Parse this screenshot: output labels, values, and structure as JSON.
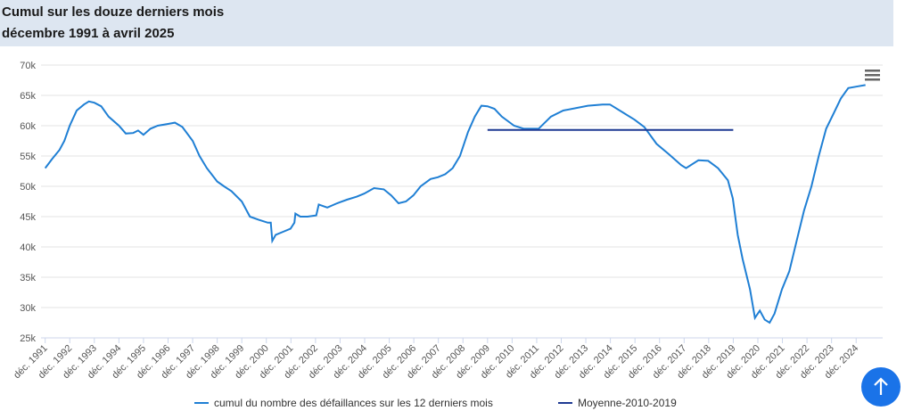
{
  "chart_data": {
    "type": "line",
    "title": "Cumul sur les douze derniers mois",
    "subtitle": "décembre 1991 à avril 2025",
    "xlim": [
      1991.75,
      2026.0
    ],
    "ylim": [
      25,
      70
    ],
    "yticks": [
      {
        "value": 25,
        "label": "25k"
      },
      {
        "value": 30,
        "label": "30k"
      },
      {
        "value": 35,
        "label": "35k"
      },
      {
        "value": 40,
        "label": "40k"
      },
      {
        "value": 45,
        "label": "45k"
      },
      {
        "value": 50,
        "label": "50k"
      },
      {
        "value": 55,
        "label": "55k"
      },
      {
        "value": 60,
        "label": "60k"
      },
      {
        "value": 65,
        "label": "65k"
      },
      {
        "value": 70,
        "label": "70k"
      }
    ],
    "xticks": [
      {
        "value": 1991.92,
        "label": "déc. 1991"
      },
      {
        "value": 1992.92,
        "label": "déc. 1992"
      },
      {
        "value": 1993.92,
        "label": "déc. 1993"
      },
      {
        "value": 1994.92,
        "label": "déc. 1994"
      },
      {
        "value": 1995.92,
        "label": "déc. 1995"
      },
      {
        "value": 1996.92,
        "label": "déc. 1996"
      },
      {
        "value": 1997.92,
        "label": "déc. 1997"
      },
      {
        "value": 1998.92,
        "label": "déc. 1998"
      },
      {
        "value": 1999.92,
        "label": "déc. 1999"
      },
      {
        "value": 2000.92,
        "label": "déc. 2000"
      },
      {
        "value": 2001.92,
        "label": "déc. 2001"
      },
      {
        "value": 2002.92,
        "label": "déc. 2002"
      },
      {
        "value": 2003.92,
        "label": "déc. 2003"
      },
      {
        "value": 2004.92,
        "label": "déc. 2004"
      },
      {
        "value": 2005.92,
        "label": "déc. 2005"
      },
      {
        "value": 2006.92,
        "label": "déc. 2006"
      },
      {
        "value": 2007.92,
        "label": "déc. 2007"
      },
      {
        "value": 2008.92,
        "label": "déc. 2008"
      },
      {
        "value": 2009.92,
        "label": "déc. 2009"
      },
      {
        "value": 2010.92,
        "label": "déc. 2010"
      },
      {
        "value": 2011.92,
        "label": "déc. 2011"
      },
      {
        "value": 2012.92,
        "label": "déc. 2012"
      },
      {
        "value": 2013.92,
        "label": "déc. 2013"
      },
      {
        "value": 2014.92,
        "label": "déc. 2014"
      },
      {
        "value": 2015.92,
        "label": "déc. 2015"
      },
      {
        "value": 2016.92,
        "label": "déc. 2016"
      },
      {
        "value": 2017.92,
        "label": "déc. 2017"
      },
      {
        "value": 2018.92,
        "label": "déc. 2018"
      },
      {
        "value": 2019.92,
        "label": "déc. 2019"
      },
      {
        "value": 2020.92,
        "label": "déc. 2020"
      },
      {
        "value": 2021.92,
        "label": "déc. 2021"
      },
      {
        "value": 2022.92,
        "label": "déc. 2022"
      },
      {
        "value": 2023.92,
        "label": "déc. 2023"
      },
      {
        "value": 2024.92,
        "label": "déc. 2024"
      }
    ],
    "grid": true,
    "series": [
      {
        "name": "cumul du nombre des défaillances sur les 12 derniers mois",
        "color": "#1f7fd4",
        "x": [
          1991.92,
          1992.2,
          1992.5,
          1992.7,
          1992.92,
          1993.2,
          1993.5,
          1993.7,
          1993.92,
          1994.2,
          1994.5,
          1994.92,
          1995.2,
          1995.5,
          1995.7,
          1995.92,
          1996.2,
          1996.5,
          1996.92,
          1997.2,
          1997.5,
          1997.92,
          1998.2,
          1998.5,
          1998.92,
          1999.2,
          1999.5,
          1999.92,
          2000.25,
          2000.6,
          2000.98,
          2001.1,
          2001.16,
          2001.3,
          2001.6,
          2001.9,
          2002.06,
          2002.1,
          2002.3,
          2002.6,
          2002.95,
          2003.05,
          2003.4,
          2003.8,
          2004.2,
          2004.6,
          2004.9,
          2005.3,
          2005.7,
          2006.0,
          2006.3,
          2006.6,
          2006.9,
          2007.2,
          2007.6,
          2007.9,
          2008.2,
          2008.5,
          2008.8,
          2009.13,
          2009.4,
          2009.67,
          2009.92,
          2010.2,
          2010.5,
          2011.0,
          2011.4,
          2012.0,
          2012.5,
          2013.0,
          2014.0,
          2014.6,
          2014.9,
          2015.5,
          2015.9,
          2016.3,
          2016.8,
          2017.3,
          2017.8,
          2018.0,
          2018.5,
          2018.9,
          2019.3,
          2019.7,
          2019.9,
          2020.1,
          2020.3,
          2020.6,
          2020.8,
          2021.0,
          2021.2,
          2021.4,
          2021.6,
          2021.9,
          2022.2,
          2022.5,
          2022.8,
          2023.1,
          2023.4,
          2023.7,
          2024.0,
          2024.3,
          2024.6,
          2025.0,
          2025.3
        ],
        "values": [
          53,
          54.5,
          56,
          57.5,
          60,
          62.5,
          63.5,
          64,
          63.8,
          63.2,
          61.5,
          60,
          58.7,
          58.8,
          59.2,
          58.5,
          59.5,
          60,
          60.3,
          60.5,
          59.8,
          57.5,
          55,
          53,
          50.8,
          50,
          49.2,
          47.5,
          45,
          44.5,
          44,
          44,
          41,
          42,
          42.5,
          43,
          44,
          45.5,
          45,
          45,
          45.2,
          47,
          46.5,
          47.2,
          47.8,
          48.3,
          48.8,
          49.7,
          49.5,
          48.5,
          47.2,
          47.5,
          48.5,
          50,
          51.2,
          51.5,
          52,
          53,
          55,
          59,
          61.5,
          63.3,
          63.2,
          62.8,
          61.5,
          60,
          59.5,
          59.5,
          61.5,
          62.5,
          63.3,
          63.5,
          63.5,
          62,
          61,
          59.8,
          57,
          55.3,
          53.5,
          53,
          54.3,
          54.2,
          53,
          51,
          48,
          42,
          38,
          33,
          28.3,
          29.5,
          28,
          27.5,
          29,
          33,
          36,
          41,
          46,
          50,
          55,
          59.5,
          62,
          64.5,
          66.2,
          66.5,
          66.7
        ]
      },
      {
        "name": "Moyenne-2010-2019",
        "color": "#1f3a93",
        "x": [
          2009.92,
          2019.92
        ],
        "values": [
          59.3,
          59.3
        ]
      }
    ]
  }
}
